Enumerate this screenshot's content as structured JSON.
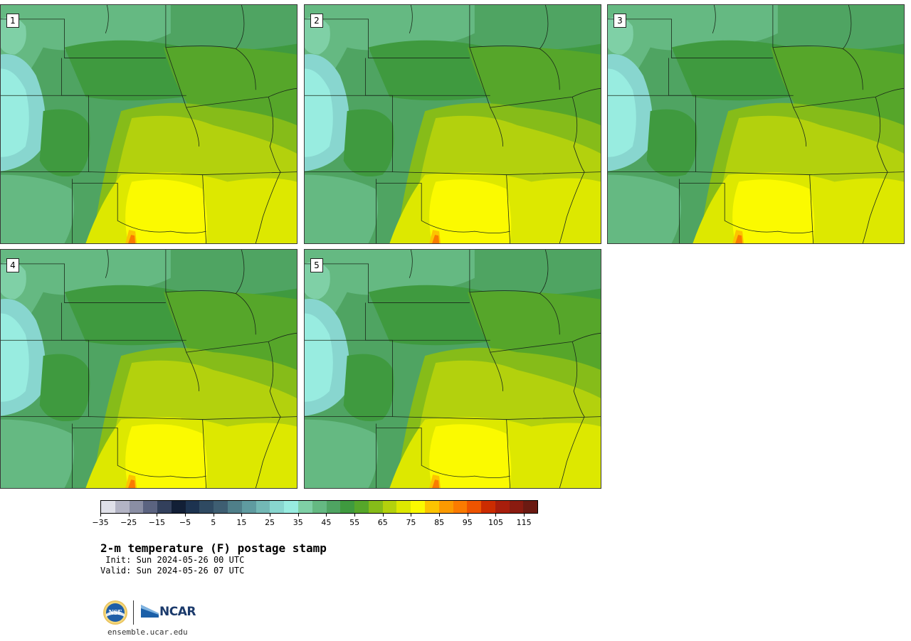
{
  "panels": [
    {
      "label": "1"
    },
    {
      "label": "2"
    },
    {
      "label": "3"
    },
    {
      "label": "4"
    },
    {
      "label": "5"
    }
  ],
  "colorbar": {
    "colors": [
      "#dfe0e8",
      "#b3b4c4",
      "#8a8ea4",
      "#5b6380",
      "#33405c",
      "#121f36",
      "#1d3350",
      "#2f4a62",
      "#3e5e72",
      "#4f7f89",
      "#5f9ba0",
      "#73b8b5",
      "#88d6cf",
      "#98ece0",
      "#7fd0a6",
      "#65b982",
      "#4fa462",
      "#3f9a3f",
      "#56a62a",
      "#86bc19",
      "#b3d10d",
      "#dde800",
      "#fbfa00",
      "#fcc400",
      "#fb9a00",
      "#fa7b00",
      "#ed5400",
      "#cc2c00",
      "#a81e0c",
      "#8a1b10",
      "#6b1a12"
    ],
    "tick_labels": [
      "−35",
      "−25",
      "−15",
      "−5",
      "5",
      "15",
      "25",
      "35",
      "45",
      "55",
      "65",
      "75",
      "85",
      "95",
      "105",
      "115"
    ]
  },
  "title": "2-m temperature (F) postage stamp",
  "init": " Init: Sun 2024-05-26 00 UTC",
  "valid": "Valid: Sun 2024-05-26 07 UTC",
  "logos": {
    "ncar_text": "NCAR"
  },
  "site": "ensemble.ucar.edu"
}
